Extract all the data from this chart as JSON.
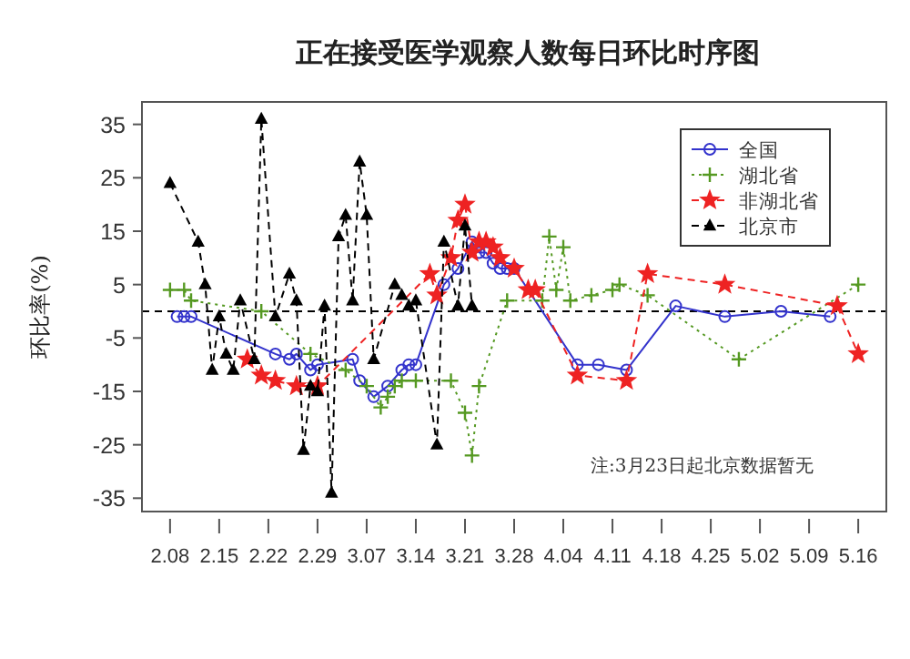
{
  "chart_data": {
    "type": "line",
    "title": "正在接受医学观察人数每日环比时序图",
    "ylabel": "环比率(%)",
    "legend": "top right",
    "xlim": [
      "--02-04",
      "--05-20"
    ],
    "ylim": [
      -37.5,
      39.2
    ],
    "yticks": [
      35,
      25,
      15,
      5,
      -5,
      -15,
      -25,
      -35
    ],
    "xticks": [
      {
        "value": "--02-08",
        "label": "2.08"
      },
      {
        "value": "--02-15",
        "label": "2.15"
      },
      {
        "value": "--02-22",
        "label": "2.22"
      },
      {
        "value": "--02-29",
        "label": "2.29"
      },
      {
        "value": "--03-07",
        "label": "3.07"
      },
      {
        "value": "--03-14",
        "label": "3.14"
      },
      {
        "value": "--03-21",
        "label": "3.21"
      },
      {
        "value": "--03-28",
        "label": "3.28"
      },
      {
        "value": "--04-04",
        "label": "4.04"
      },
      {
        "value": "--04-11",
        "label": "4.11"
      },
      {
        "value": "--04-18",
        "label": "4.18"
      },
      {
        "value": "--04-25",
        "label": "4.25"
      },
      {
        "value": "--05-02",
        "label": "5.02"
      },
      {
        "value": "--05-09",
        "label": "5.09"
      },
      {
        "value": "--05-16",
        "label": "5.16"
      }
    ],
    "ref_lines": [
      {
        "axis": "y",
        "value": 0,
        "color": "#000000",
        "line_style": "dashed"
      }
    ],
    "annotations": [
      "注:3月23日起北京数据暂无"
    ],
    "series": [
      {
        "name": "全国",
        "color": "#3333cc",
        "marker": "circle",
        "line_style": "solid",
        "x": [
          "--02-09",
          "--02-10",
          "--02-11",
          "--02-23",
          "--02-25",
          "--02-26",
          "--02-28",
          "--02-29",
          "--03-05",
          "--03-06",
          "--03-08",
          "--03-10",
          "--03-12",
          "--03-13",
          "--03-14",
          "--03-18",
          "--03-20",
          "--03-22",
          "--03-23",
          "--03-24",
          "--03-25",
          "--03-26",
          "--03-27",
          "--03-28",
          "--04-06",
          "--04-09",
          "--04-13",
          "--04-20",
          "--04-27",
          "--05-05",
          "--05-12"
        ],
        "values": [
          -1,
          -1,
          -1,
          -8,
          -9,
          -8,
          -11,
          -10,
          -9,
          -13,
          -16,
          -14,
          -11,
          -10,
          -10,
          5,
          8,
          13,
          11,
          11,
          9,
          8,
          8,
          8,
          -10,
          -10,
          -11,
          1,
          -1,
          0,
          -1
        ]
      },
      {
        "name": "湖北省",
        "color": "#559922",
        "marker": "cross",
        "line_style": "dotted",
        "x": [
          "--02-08",
          "--02-10",
          "--02-11",
          "--02-21",
          "--02-28",
          "--03-04",
          "--03-07",
          "--03-09",
          "--03-10",
          "--03-11",
          "--03-12",
          "--03-14",
          "--03-19",
          "--03-21",
          "--03-22",
          "--03-23",
          "--03-27",
          "--04-01",
          "--04-02",
          "--04-03",
          "--04-04",
          "--04-05",
          "--04-08",
          "--04-11",
          "--04-12",
          "--04-16",
          "--04-29",
          "--05-16"
        ],
        "values": [
          4,
          4,
          2,
          0,
          -8,
          -11,
          -14,
          -18,
          -16,
          -14,
          -13,
          -13,
          -13,
          -19,
          -27,
          -14,
          2,
          2,
          14,
          4,
          12,
          2,
          3,
          4,
          5,
          3,
          -9,
          5
        ]
      },
      {
        "name": "非湖北省",
        "color": "#ee2222",
        "marker": "star",
        "line_style": "dashed",
        "x": [
          "--02-19",
          "--02-21",
          "--02-23",
          "--02-26",
          "--02-29",
          "--03-16",
          "--03-17",
          "--03-19",
          "--03-20",
          "--03-21",
          "--03-22",
          "--03-23",
          "--03-24",
          "--03-25",
          "--03-26",
          "--03-28",
          "--03-30",
          "--03-31",
          "--04-06",
          "--04-13",
          "--04-16",
          "--04-27",
          "--05-13",
          "--05-16"
        ],
        "values": [
          -9,
          -12,
          -13,
          -14,
          -14,
          7,
          3,
          10,
          17,
          20,
          11,
          13,
          13,
          12,
          10,
          8,
          4,
          4,
          -12,
          -13,
          7,
          5,
          1,
          -8
        ]
      },
      {
        "name": "北京市",
        "color": "#000000",
        "marker": "triangle",
        "line_style": "dashed",
        "x": [
          "--02-08",
          "--02-12",
          "--02-13",
          "--02-14",
          "--02-15",
          "--02-16",
          "--02-17",
          "--02-18",
          "--02-20",
          "--02-21",
          "--02-23",
          "--02-25",
          "--02-26",
          "--02-27",
          "--02-28",
          "--02-29",
          "--03-01",
          "--03-02",
          "--03-03",
          "--03-04",
          "--03-05",
          "--03-06",
          "--03-07",
          "--03-08",
          "--03-11",
          "--03-12",
          "--03-13",
          "--03-14",
          "--03-17",
          "--03-18",
          "--03-20",
          "--03-21",
          "--03-22"
        ],
        "values": [
          24,
          13,
          5,
          -11,
          -1,
          -8,
          -11,
          2,
          -9,
          36,
          -1,
          7,
          2,
          -26,
          -14,
          -15,
          1,
          -34,
          14,
          18,
          2,
          28,
          18,
          -9,
          5,
          3,
          1,
          2,
          -25,
          13,
          1,
          16,
          1
        ]
      }
    ]
  }
}
